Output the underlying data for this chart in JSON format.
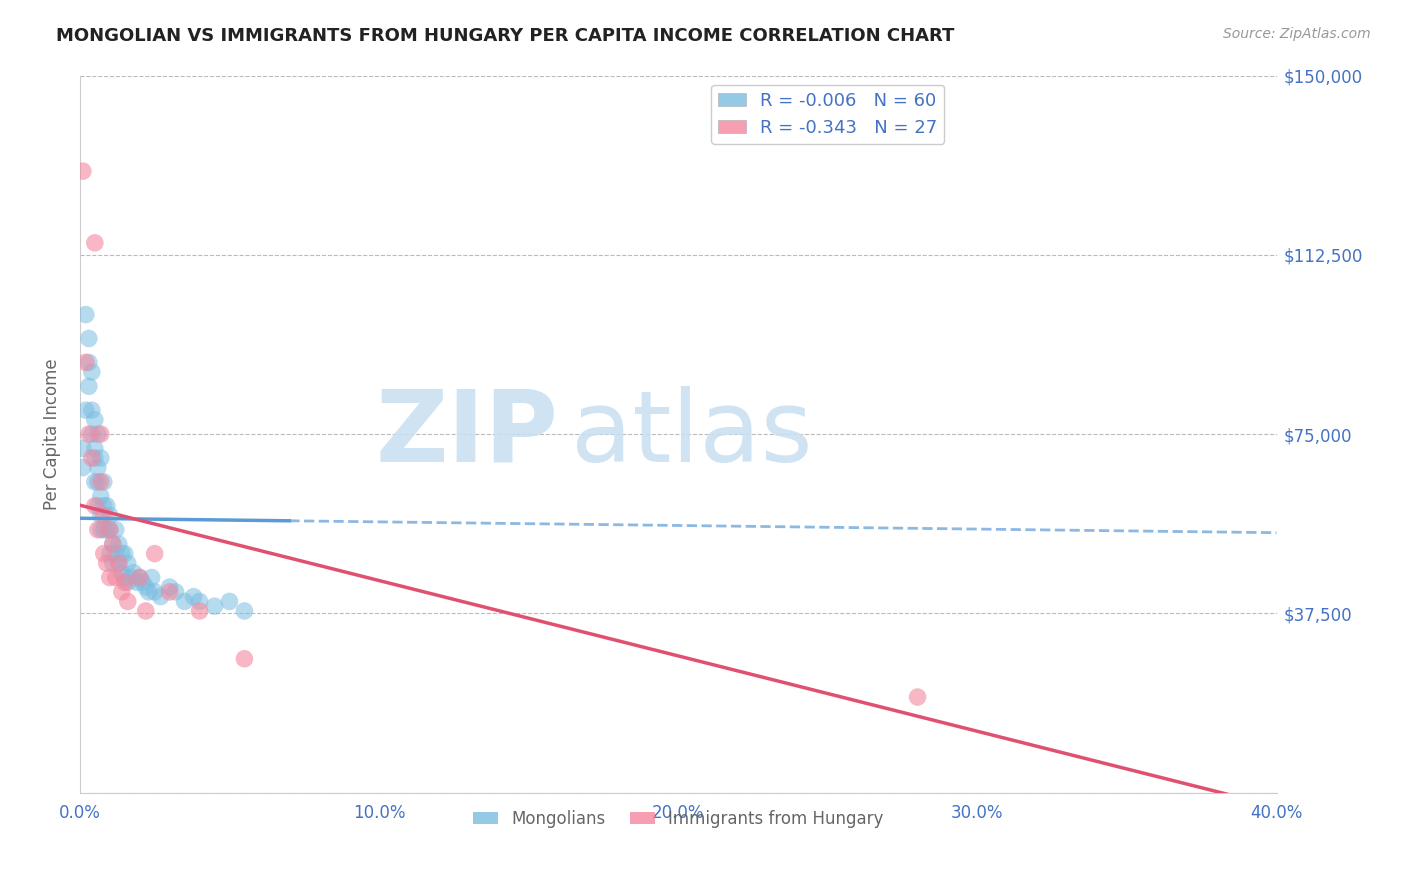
{
  "title": "MONGOLIAN VS IMMIGRANTS FROM HUNGARY PER CAPITA INCOME CORRELATION CHART",
  "source": "Source: ZipAtlas.com",
  "ylabel": "Per Capita Income",
  "xlim": [
    0.0,
    0.4
  ],
  "ylim": [
    0,
    150000
  ],
  "yticks": [
    0,
    37500,
    75000,
    112500,
    150000
  ],
  "ytick_labels": [
    "",
    "$37,500",
    "$75,000",
    "$112,500",
    "$150,000"
  ],
  "xticks": [
    0.0,
    0.1,
    0.2,
    0.3,
    0.4
  ],
  "xtick_labels": [
    "0.0%",
    "10.0%",
    "20.0%",
    "30.0%",
    "40.0%"
  ],
  "mongolian_color": "#7bbde0",
  "hungary_color": "#f4879f",
  "mongolian_R": -0.006,
  "mongolian_N": 60,
  "hungary_R": -0.343,
  "hungary_N": 27,
  "legend_label_1": "Mongolians",
  "legend_label_2": "Immigrants from Hungary",
  "watermark_zip": "ZIP",
  "watermark_atlas": "atlas",
  "title_color": "#222222",
  "axis_color": "#4472c4",
  "label_color": "#666666",
  "background_color": "#ffffff",
  "grid_color": "#bbbbbb",
  "mongolian_x": [
    0.001,
    0.001,
    0.002,
    0.002,
    0.003,
    0.003,
    0.003,
    0.004,
    0.004,
    0.004,
    0.005,
    0.005,
    0.005,
    0.005,
    0.006,
    0.006,
    0.006,
    0.006,
    0.007,
    0.007,
    0.007,
    0.007,
    0.008,
    0.008,
    0.008,
    0.009,
    0.009,
    0.01,
    0.01,
    0.01,
    0.011,
    0.011,
    0.012,
    0.012,
    0.013,
    0.013,
    0.014,
    0.014,
    0.015,
    0.015,
    0.016,
    0.016,
    0.017,
    0.018,
    0.019,
    0.02,
    0.021,
    0.022,
    0.023,
    0.024,
    0.025,
    0.027,
    0.03,
    0.032,
    0.035,
    0.038,
    0.04,
    0.045,
    0.05,
    0.055
  ],
  "mongolian_y": [
    68000,
    72000,
    80000,
    100000,
    90000,
    85000,
    95000,
    75000,
    80000,
    88000,
    70000,
    65000,
    78000,
    72000,
    60000,
    68000,
    75000,
    65000,
    58000,
    62000,
    70000,
    55000,
    60000,
    65000,
    55000,
    55000,
    60000,
    50000,
    55000,
    58000,
    52000,
    48000,
    50000,
    55000,
    48000,
    52000,
    46000,
    50000,
    45000,
    50000,
    44000,
    48000,
    45000,
    46000,
    44000,
    45000,
    44000,
    43000,
    42000,
    45000,
    42000,
    41000,
    43000,
    42000,
    40000,
    41000,
    40000,
    39000,
    40000,
    38000
  ],
  "hungary_x": [
    0.001,
    0.002,
    0.003,
    0.004,
    0.005,
    0.005,
    0.006,
    0.007,
    0.007,
    0.008,
    0.008,
    0.009,
    0.01,
    0.01,
    0.011,
    0.012,
    0.013,
    0.014,
    0.015,
    0.016,
    0.02,
    0.022,
    0.025,
    0.03,
    0.04,
    0.055,
    0.28
  ],
  "hungary_y": [
    130000,
    90000,
    75000,
    70000,
    60000,
    115000,
    55000,
    65000,
    75000,
    50000,
    58000,
    48000,
    45000,
    55000,
    52000,
    45000,
    48000,
    42000,
    44000,
    40000,
    45000,
    38000,
    50000,
    42000,
    38000,
    28000,
    20000
  ],
  "mon_line_solid_end": 0.07,
  "hun_line_color": "#e05070",
  "mon_line_color": "#5b9bd5"
}
